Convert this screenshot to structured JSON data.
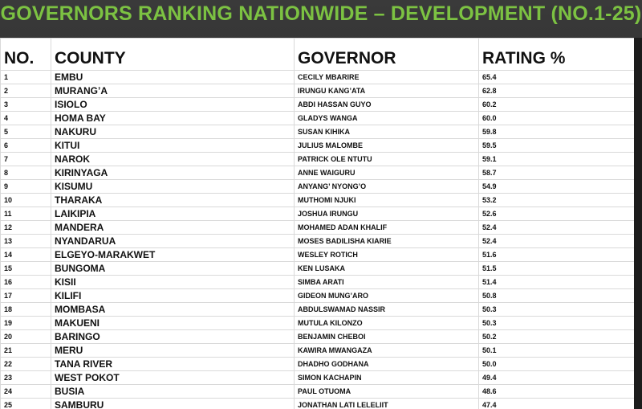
{
  "title": "GOVERNORS RANKING NATIONWIDE – DEVELOPMENT (NO.1-25)",
  "colors": {
    "title_green": "#7cc242",
    "background_dark": "#2b2b2b",
    "table_bg": "#ffffff"
  },
  "table": {
    "headers": [
      "NO.",
      "COUNTY",
      "GOVERNOR",
      "RATING %"
    ],
    "rows": [
      [
        "1",
        "EMBU",
        "CECILY MBARIRE",
        "65.4"
      ],
      [
        "2",
        "MURANG’A",
        "IRUNGU KANG’ATA",
        "62.8"
      ],
      [
        "3",
        "ISIOLO",
        "ABDI HASSAN GUYO",
        "60.2"
      ],
      [
        "4",
        "HOMA BAY",
        "GLADYS WANGA",
        "60.0"
      ],
      [
        "5",
        "NAKURU",
        "SUSAN KIHIKA",
        "59.8"
      ],
      [
        "6",
        "KITUI",
        "JULIUS MALOMBE",
        "59.5"
      ],
      [
        "7",
        "NAROK",
        "PATRICK OLE NTUTU",
        "59.1"
      ],
      [
        "8",
        "KIRINYAGA",
        "ANNE WAIGURU",
        "58.7"
      ],
      [
        "9",
        "KISUMU",
        "ANYANG’ NYONG’O",
        "54.9"
      ],
      [
        "10",
        "THARAKA",
        "MUTHOMI NJUKI",
        "53.2"
      ],
      [
        "11",
        "LAIKIPIA",
        "JOSHUA IRUNGU",
        "52.6"
      ],
      [
        "12",
        "MANDERA",
        "MOHAMED ADAN KHALIF",
        "52.4"
      ],
      [
        "13",
        "NYANDARUA",
        "MOSES BADILISHA KIARIE",
        "52.4"
      ],
      [
        "14",
        "ELGEYO-MARAKWET",
        "WESLEY ROTICH",
        "51.6"
      ],
      [
        "15",
        "BUNGOMA",
        "KEN LUSAKA",
        "51.5"
      ],
      [
        "16",
        "KISII",
        "SIMBA ARATI",
        "51.4"
      ],
      [
        "17",
        "KILIFI",
        "GIDEON MUNG’ARO",
        "50.8"
      ],
      [
        "18",
        "MOMBASA",
        "ABDULSWAMAD NASSIR",
        "50.3"
      ],
      [
        "19",
        "MAKUENI",
        "MUTULA KILONZO",
        "50.3"
      ],
      [
        "20",
        "BARINGO",
        "BENJAMIN CHEBOI",
        "50.2"
      ],
      [
        "21",
        "MERU",
        "KAWIRA MWANGAZA",
        "50.1"
      ],
      [
        "22",
        "TANA RIVER",
        "DHADHO GODHANA",
        "50.0"
      ],
      [
        "23",
        "WEST POKOT",
        "SIMON KACHAPIN",
        "49.4"
      ],
      [
        "24",
        "BUSIA",
        "PAUL OTUOMA",
        "48.6"
      ],
      [
        "25",
        "SAMBURU",
        "JONATHAN LATI LELELIIT",
        "47.4"
      ]
    ]
  }
}
